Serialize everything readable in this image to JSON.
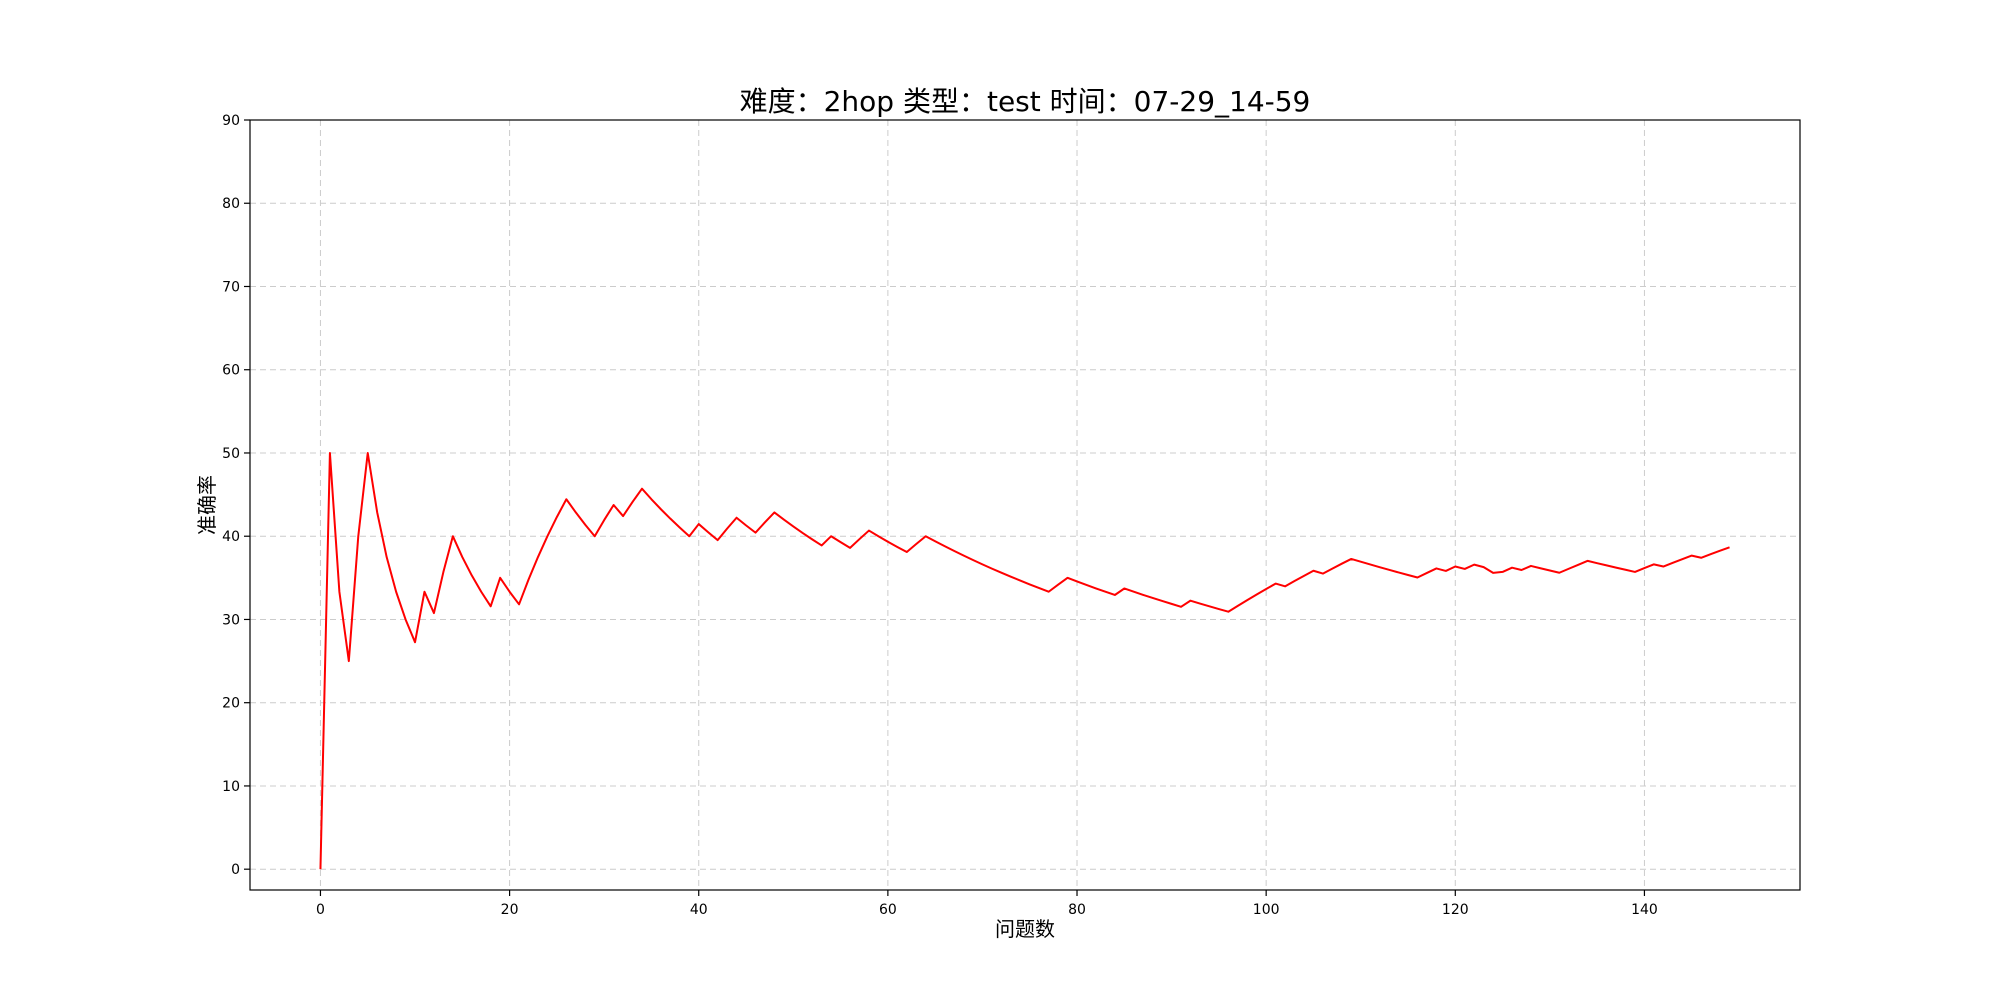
{
  "chart_data": {
    "type": "line",
    "title": "难度：2hop 类型：test 时间：07-29_14-59",
    "xlabel": "问题数",
    "ylabel": "准确率",
    "xlim": [
      -7.45,
      156.45
    ],
    "ylim": [
      -2.5,
      90
    ],
    "xticks": [
      0,
      20,
      40,
      60,
      80,
      100,
      120,
      140
    ],
    "yticks": [
      0,
      10,
      20,
      30,
      40,
      50,
      60,
      70,
      80,
      90
    ],
    "grid": true,
    "legend": "none",
    "series": [
      {
        "color": "#ff0000",
        "x": [
          0,
          1,
          2,
          3,
          4,
          5,
          6,
          7,
          8,
          9,
          10,
          11,
          12,
          13,
          14,
          15,
          16,
          17,
          18,
          19,
          20,
          21,
          22,
          23,
          24,
          25,
          26,
          27,
          28,
          29,
          30,
          31,
          32,
          33,
          34,
          35,
          36,
          37,
          38,
          39,
          40,
          41,
          42,
          43,
          44,
          45,
          46,
          47,
          48,
          49,
          50,
          51,
          52,
          53,
          54,
          55,
          56,
          57,
          58,
          59,
          60,
          61,
          62,
          63,
          64,
          65,
          66,
          67,
          68,
          69,
          70,
          71,
          72,
          73,
          74,
          75,
          76,
          77,
          78,
          79,
          80,
          81,
          82,
          83,
          84,
          85,
          86,
          87,
          88,
          89,
          90,
          91,
          92,
          93,
          94,
          95,
          96,
          97,
          98,
          99,
          100,
          101,
          102,
          103,
          104,
          105,
          106,
          107,
          108,
          109,
          110,
          111,
          112,
          113,
          114,
          115,
          116,
          117,
          118,
          119,
          120,
          121,
          122,
          123,
          124,
          125,
          126,
          127,
          128,
          129,
          130,
          131,
          132,
          133,
          134,
          135,
          136,
          137,
          138,
          139,
          140,
          141,
          142,
          143,
          144,
          145,
          146,
          147,
          148,
          149
        ],
        "y": [
          0,
          50,
          33.33,
          25,
          40,
          50,
          42.86,
          37.5,
          33.33,
          30,
          27.27,
          33.33,
          30.77,
          35.71,
          40,
          37.5,
          35.29,
          33.33,
          31.58,
          35,
          33.33,
          31.82,
          34.78,
          37.5,
          40,
          42.31,
          44.44,
          42.86,
          41.38,
          40,
          41.94,
          43.75,
          42.42,
          44.12,
          45.71,
          44.44,
          43.24,
          42.11,
          41.03,
          40,
          41.46,
          40.48,
          39.53,
          40.91,
          42.22,
          41.3,
          40.43,
          41.67,
          42.86,
          42,
          41.18,
          40.38,
          39.62,
          38.89,
          40,
          39.29,
          38.6,
          39.66,
          40.68,
          40,
          39.34,
          38.71,
          38.1,
          39.06,
          40,
          39.39,
          38.81,
          38.24,
          37.68,
          37.14,
          36.62,
          36.11,
          35.62,
          35.14,
          34.67,
          34.21,
          33.77,
          33.33,
          34.18,
          35,
          34.57,
          34.15,
          33.73,
          33.33,
          32.94,
          33.72,
          33.33,
          32.95,
          32.58,
          32.22,
          31.87,
          31.52,
          32.26,
          31.91,
          31.58,
          31.25,
          30.93,
          31.63,
          32.32,
          33,
          33.66,
          34.31,
          33.98,
          34.62,
          35.24,
          35.85,
          35.51,
          36.11,
          36.7,
          37.27,
          36.94,
          36.61,
          36.28,
          35.96,
          35.65,
          35.34,
          35.04,
          35.59,
          36.13,
          35.83,
          36.36,
          36.07,
          36.59,
          36.29,
          35.6,
          35.71,
          36.22,
          35.94,
          36.43,
          36.15,
          35.88,
          35.61,
          36.09,
          36.57,
          37.04,
          36.76,
          36.5,
          36.23,
          35.97,
          35.71,
          36.17,
          36.62,
          36.36,
          36.81,
          37.24,
          37.67,
          37.41,
          37.84,
          38.26,
          38.67
        ]
      }
    ]
  }
}
